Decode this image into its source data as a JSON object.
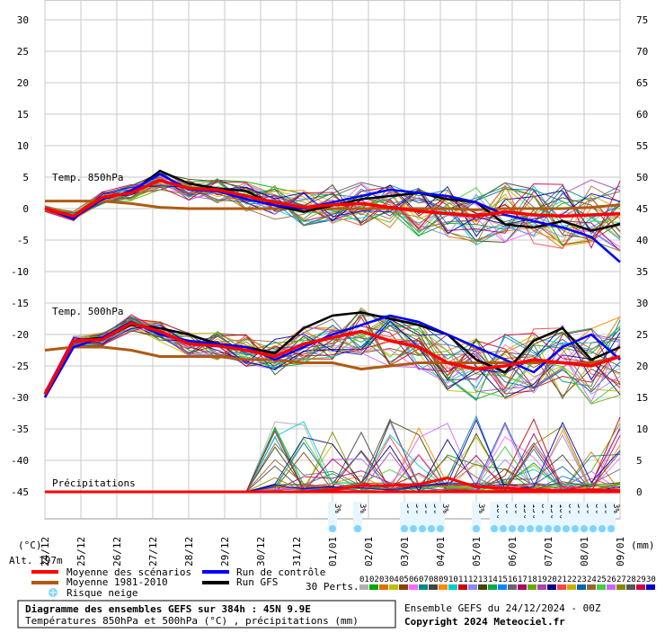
{
  "chart_data": {
    "type": "line",
    "x_dates": [
      "24/12",
      "25/12",
      "26/12",
      "27/12",
      "28/12",
      "29/12",
      "30/12",
      "31/12",
      "01/01",
      "02/01",
      "03/01",
      "04/01",
      "05/01",
      "06/01",
      "07/01",
      "08/01",
      "09/01"
    ],
    "left_axis": {
      "ticks": [
        30,
        25,
        20,
        15,
        10,
        5,
        0,
        -5,
        -10,
        -15,
        -20,
        -25,
        -30,
        -35,
        -40,
        -45
      ],
      "ylim": [
        -45,
        30
      ]
    },
    "right_axis": {
      "ticks": [
        75,
        70,
        65,
        60,
        55,
        50,
        45,
        40,
        35,
        30,
        25,
        20,
        15,
        10,
        5,
        0
      ],
      "ylim": [
        0,
        75
      ]
    },
    "left_unit": "(°C)",
    "right_unit": "(mm)",
    "altitude": "Alt. 197m",
    "panel_labels": {
      "t850": "Temp. 850hPa",
      "t500": "Temp. 500hPa",
      "precip": "Précipitations"
    },
    "series_mean_850": {
      "name": "Moyenne des scénarios",
      "color": "#ff0000",
      "values": [
        0,
        -1.2,
        1.8,
        2.5,
        4.5,
        3.2,
        3.0,
        2.0,
        1.0,
        0.2,
        0.6,
        0.8,
        0.2,
        -0.4,
        -0.8,
        -1.2,
        -0.5,
        -1.0,
        -1.2,
        -1.0,
        -0.8
      ]
    },
    "series_clim_850": {
      "name": "Moyenne 1981-2010",
      "color": "#b05a10",
      "values": [
        1.2,
        1.2,
        1.2,
        0.8,
        0.2,
        0.0,
        0.0,
        0.0,
        0.0,
        0.0,
        0.0,
        0.0,
        0.0,
        0.0,
        0.0,
        -0.2,
        0.0,
        0.0,
        0.0,
        0.2,
        0.6
      ]
    },
    "series_control_850": {
      "name": "Run de contrôle",
      "color": "#0000ff",
      "values": [
        0,
        -1.5,
        1.5,
        2.8,
        5.5,
        3.0,
        2.8,
        1.5,
        0.5,
        0.0,
        1.0,
        2.0,
        3.0,
        2.5,
        2.0,
        1.0,
        -1.0,
        -2.0,
        -3.0,
        -4.5,
        -8.5
      ]
    },
    "series_gfs_850": {
      "name": "Run GFS",
      "color": "#000000",
      "values": [
        0,
        -1.2,
        1.8,
        2.5,
        6.0,
        4.0,
        3.2,
        2.8,
        0.5,
        -0.5,
        0.5,
        1.5,
        2.0,
        2.5,
        1.5,
        1.0,
        -2.5,
        -3.0,
        -2.0,
        -3.5,
        -2.5
      ]
    },
    "series_mean_500": {
      "name": "Moyenne des scénarios",
      "color": "#ff0000",
      "values": [
        -29.5,
        -21,
        -20.8,
        -18.2,
        -19.5,
        -21.5,
        -21.8,
        -22.5,
        -23.5,
        -21.5,
        -20.5,
        -19.5,
        -21.0,
        -22.0,
        -24.5,
        -25.5,
        -25.0,
        -24.0,
        -24.5,
        -25.0,
        -23.5
      ]
    },
    "series_clim_500": {
      "name": "Moyenne 1981-2010",
      "color": "#b05a10",
      "values": [
        -22.5,
        -22.0,
        -22.0,
        -22.5,
        -23.5,
        -23.5,
        -23.5,
        -24.0,
        -24.0,
        -24.5,
        -24.5,
        -25.5,
        -25.0,
        -24.5,
        -24.5,
        -24.5,
        -24.5,
        -24.5,
        -24.5,
        -24.5,
        -23.5
      ]
    },
    "series_control_500": {
      "name": "Run de contrôle",
      "color": "#0000ff",
      "values": [
        -30,
        -22,
        -20.5,
        -18,
        -20,
        -21,
        -21.5,
        -22,
        -24,
        -22,
        -20,
        -18.5,
        -17,
        -18,
        -20,
        -22,
        -24,
        -26,
        -22,
        -20,
        -24
      ]
    },
    "series_gfs_500": {
      "name": "Run GFS",
      "color": "#000000",
      "values": [
        -30,
        -21,
        -20.5,
        -18.5,
        -19,
        -20,
        -21.5,
        -22,
        -23,
        -19,
        -17,
        -16.5,
        -17.5,
        -18.5,
        -20,
        -24,
        -26,
        -21,
        -19,
        -24,
        -22
      ]
    },
    "series_mean_precip": {
      "name": "Moyenne des scénarios",
      "color": "#ff0000",
      "values": [
        0,
        0,
        0,
        0,
        0,
        0,
        0,
        0,
        0,
        0,
        0.3,
        1,
        1,
        1.2,
        2.2,
        0.8,
        0.6,
        0.3,
        0.2,
        0.3,
        0.2
      ]
    },
    "snow_risk": [
      {
        "day": 8.0,
        "label": "3%"
      },
      {
        "day": 8.7,
        "label": "3%"
      },
      {
        "day": 10.0,
        "label": "3%"
      },
      {
        "day": 10.25,
        "label": "3%"
      },
      {
        "day": 10.5,
        "label": "3%"
      },
      {
        "day": 10.75,
        "label": "3%"
      },
      {
        "day": 11.0,
        "label": "3%"
      },
      {
        "day": 12.0,
        "label": "3%"
      },
      {
        "day": 12.5,
        "label": "10%"
      },
      {
        "day": 12.75,
        "label": "6%"
      },
      {
        "day": 13.0,
        "label": "6%"
      },
      {
        "day": 13.25,
        "label": "13%"
      },
      {
        "day": 13.5,
        "label": "13%"
      },
      {
        "day": 13.75,
        "label": "6%"
      },
      {
        "day": 14.0,
        "label": "13%"
      },
      {
        "day": 14.25,
        "label": "10%"
      },
      {
        "day": 14.5,
        "label": "6%"
      },
      {
        "day": 14.75,
        "label": "3%"
      },
      {
        "day": 15.0,
        "label": "3%"
      },
      {
        "day": 15.25,
        "label": "6%"
      },
      {
        "day": 15.5,
        "label": "3%"
      },
      {
        "day": 15.75,
        "label": "3%"
      }
    ],
    "legend": {
      "mean": "Moyenne des scénarios",
      "clim": "Moyenne 1981-2010",
      "control": "Run de contrôle",
      "gfs": "Run GFS",
      "snow": "Risque neige",
      "perts_label": "30 Perts.",
      "perts": [
        "01",
        "02",
        "03",
        "04",
        "05",
        "06",
        "07",
        "08",
        "09",
        "10",
        "11",
        "12",
        "13",
        "14",
        "15",
        "16",
        "17",
        "18",
        "19",
        "20",
        "21",
        "22",
        "23",
        "24",
        "25",
        "26",
        "27",
        "28",
        "29",
        "30"
      ],
      "pert_colors": [
        "#b0b0b0",
        "#00aa00",
        "#e07000",
        "#c0c000",
        "#884400",
        "#ff66ff",
        "#008888",
        "#444444",
        "#ff8800",
        "#00cccc",
        "#cc0000",
        "#8888ff",
        "#444400",
        "#00aa44",
        "#0088ff",
        "#666666",
        "#aa0066",
        "#66aa00",
        "#aa44aa",
        "#000088",
        "#ff4444",
        "#ccaa00",
        "#0066aa",
        "#996633",
        "#44cc44",
        "#cc66ff",
        "#888800",
        "#555555",
        "#cc0044",
        "#0000cc"
      ]
    },
    "footer": {
      "title": "Diagramme des ensembles GEFS sur 384h : 45N 9.9E",
      "subtitle": "Températures 850hPa et 500hPa (°C) , précipitations (mm)",
      "run": "Ensemble GEFS du 24/12/2024 - 00Z",
      "copyright": "Copyright 2024 Meteociel.fr"
    }
  }
}
